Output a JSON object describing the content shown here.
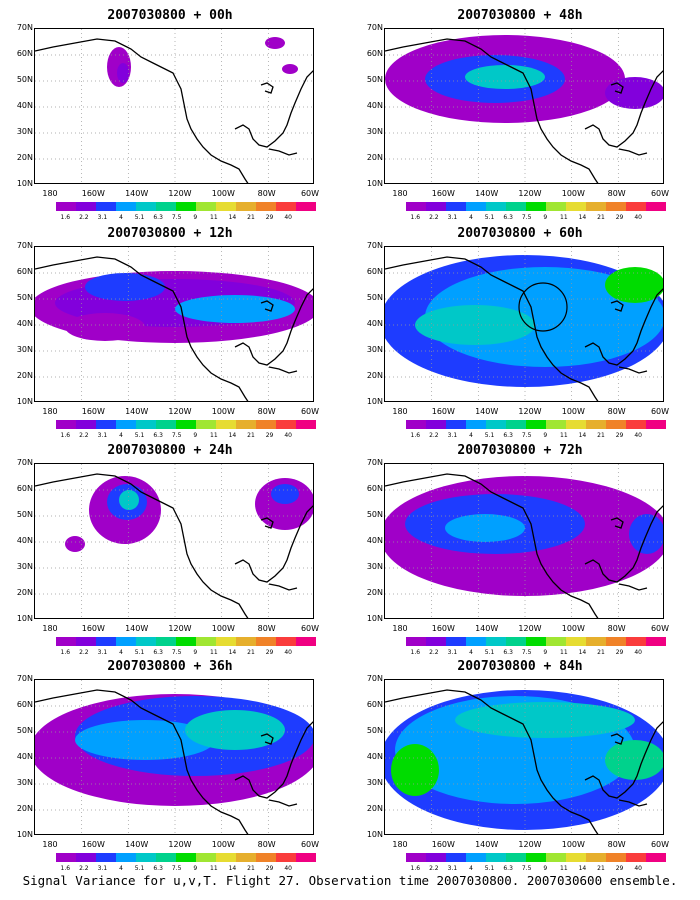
{
  "figure": {
    "caption": "Signal Variance for u,v,T. Flight 27. Observation time 2007030800. 2007030600 ensemble.",
    "lat_ticks": [
      "70N",
      "60N",
      "50N",
      "40N",
      "30N",
      "20N",
      "10N"
    ],
    "lon_ticks": [
      "180",
      "160W",
      "140W",
      "120W",
      "100W",
      "80W",
      "60W"
    ],
    "colorbar": {
      "labels": [
        "1.6",
        "2.2",
        "3.1",
        "4",
        "5.1",
        "6.3",
        "7.5",
        "9",
        "11",
        "14",
        "21",
        "29",
        "40"
      ],
      "colors": [
        "#a000c8",
        "#8200dc",
        "#1e3cff",
        "#00a0ff",
        "#00c8c8",
        "#00d28c",
        "#00dc00",
        "#a0e632",
        "#e6dc32",
        "#e6af2d",
        "#f08228",
        "#fa3c3c",
        "#f00082"
      ]
    },
    "panels": [
      {
        "title": "2007030800 + 00h",
        "col": 0,
        "row": 0,
        "level": 0
      },
      {
        "title": "2007030800 + 48h",
        "col": 1,
        "row": 0,
        "level": 4
      },
      {
        "title": "2007030800 + 12h",
        "col": 0,
        "row": 1,
        "level": 1
      },
      {
        "title": "2007030800 + 60h",
        "col": 1,
        "row": 1,
        "level": 5
      },
      {
        "title": "2007030800 + 24h",
        "col": 0,
        "row": 2,
        "level": 2
      },
      {
        "title": "2007030800 + 72h",
        "col": 1,
        "row": 2,
        "level": 6
      },
      {
        "title": "2007030800 + 36h",
        "col": 0,
        "row": 3,
        "level": 3
      },
      {
        "title": "2007030800 + 84h",
        "col": 1,
        "row": 3,
        "level": 7
      }
    ]
  }
}
